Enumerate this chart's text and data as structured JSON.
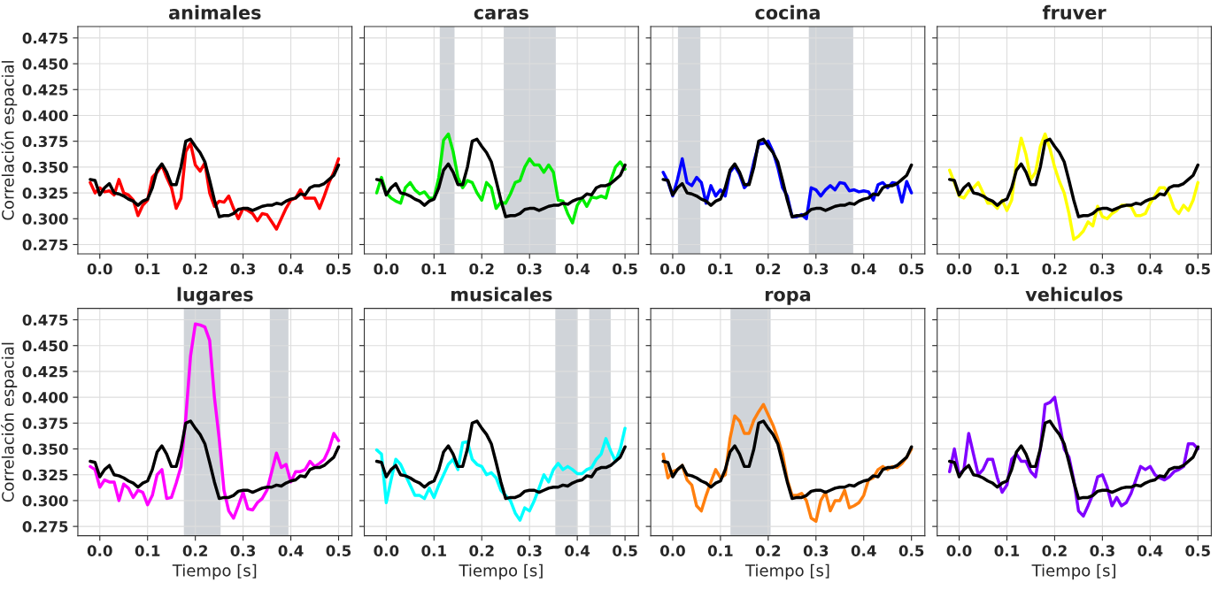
{
  "chart_data": [
    {
      "type": "line",
      "title": "animales",
      "ylabel": "Correlación espacial",
      "grid": true,
      "x": [
        -0.02,
        -0.01,
        0.0,
        0.01,
        0.02,
        0.03,
        0.04,
        0.05,
        0.06,
        0.07,
        0.08,
        0.09,
        0.1,
        0.11,
        0.12,
        0.13,
        0.14,
        0.15,
        0.16,
        0.17,
        0.18,
        0.19,
        0.2,
        0.21,
        0.22,
        0.23,
        0.24,
        0.25,
        0.26,
        0.27,
        0.28,
        0.29,
        0.3,
        0.31,
        0.32,
        0.33,
        0.34,
        0.35,
        0.36,
        0.37,
        0.38,
        0.39,
        0.4,
        0.41,
        0.42,
        0.43,
        0.44,
        0.45,
        0.46,
        0.47,
        0.48,
        0.49,
        0.5
      ],
      "xlim": [
        -0.046,
        0.528
      ],
      "ylim": [
        0.266,
        0.486
      ],
      "xticks": [
        {
          "value": 0.0,
          "label": "0.0"
        },
        {
          "value": 0.1,
          "label": "0.1"
        },
        {
          "value": 0.2,
          "label": "0.2"
        },
        {
          "value": 0.3,
          "label": "0.3"
        },
        {
          "value": 0.4,
          "label": "0.4"
        },
        {
          "value": 0.5,
          "label": "0.5"
        }
      ],
      "yticks": [
        {
          "value": 0.275,
          "label": "0.275"
        },
        {
          "value": 0.3,
          "label": "0.300"
        },
        {
          "value": 0.325,
          "label": "0.325"
        },
        {
          "value": 0.35,
          "label": "0.350"
        },
        {
          "value": 0.375,
          "label": "0.375"
        },
        {
          "value": 0.4,
          "label": "0.400"
        },
        {
          "value": 0.425,
          "label": "0.425"
        },
        {
          "value": 0.45,
          "label": "0.450"
        },
        {
          "value": 0.475,
          "label": "0.475"
        }
      ],
      "series": [
        {
          "color": "#ff0000",
          "values": [
            0.335,
            0.325,
            0.33,
            0.326,
            0.327,
            0.323,
            0.338,
            0.325,
            0.323,
            0.318,
            0.303,
            0.313,
            0.318,
            0.34,
            0.345,
            0.352,
            0.34,
            0.33,
            0.31,
            0.32,
            0.365,
            0.373,
            0.352,
            0.346,
            0.354,
            0.325,
            0.312,
            0.317,
            0.316,
            0.322,
            0.31,
            0.3,
            0.31,
            0.308,
            0.305,
            0.298,
            0.305,
            0.304,
            0.297,
            0.29,
            0.3,
            0.31,
            0.318,
            0.32,
            0.328,
            0.32,
            0.32,
            0.32,
            0.31,
            0.322,
            0.335,
            0.345,
            0.358
          ]
        },
        {
          "color": "#000000",
          "values": [
            0.338,
            0.337,
            0.323,
            0.33,
            0.334,
            0.325,
            0.324,
            0.322,
            0.319,
            0.317,
            0.313,
            0.317,
            0.319,
            0.33,
            0.347,
            0.353,
            0.345,
            0.333,
            0.333,
            0.35,
            0.375,
            0.377,
            0.37,
            0.364,
            0.355,
            0.337,
            0.318,
            0.302,
            0.303,
            0.303,
            0.305,
            0.309,
            0.31,
            0.31,
            0.308,
            0.31,
            0.312,
            0.313,
            0.313,
            0.315,
            0.314,
            0.317,
            0.319,
            0.32,
            0.324,
            0.323,
            0.33,
            0.332,
            0.332,
            0.334,
            0.338,
            0.342,
            0.352
          ]
        }
      ]
    },
    {
      "type": "line",
      "title": "caras",
      "grid": true,
      "tick_labels": "x",
      "x": [
        -0.02,
        -0.01,
        0.0,
        0.01,
        0.02,
        0.03,
        0.04,
        0.05,
        0.06,
        0.07,
        0.08,
        0.09,
        0.1,
        0.11,
        0.12,
        0.13,
        0.14,
        0.15,
        0.16,
        0.17,
        0.18,
        0.19,
        0.2,
        0.21,
        0.22,
        0.23,
        0.24,
        0.25,
        0.26,
        0.27,
        0.28,
        0.29,
        0.3,
        0.31,
        0.32,
        0.33,
        0.34,
        0.35,
        0.36,
        0.37,
        0.38,
        0.39,
        0.4,
        0.41,
        0.42,
        0.43,
        0.44,
        0.45,
        0.46,
        0.47,
        0.48,
        0.49,
        0.5
      ],
      "xlim": [
        -0.046,
        0.528
      ],
      "ylim": [
        0.266,
        0.486
      ],
      "xticks": [
        {
          "value": 0.0,
          "label": "0.0"
        },
        {
          "value": 0.1,
          "label": "0.1"
        },
        {
          "value": 0.2,
          "label": "0.2"
        },
        {
          "value": 0.3,
          "label": "0.3"
        },
        {
          "value": 0.4,
          "label": "0.4"
        },
        {
          "value": 0.5,
          "label": "0.5"
        }
      ],
      "yticks": [
        {
          "value": 0.275,
          "label": null
        },
        {
          "value": 0.3,
          "label": null
        },
        {
          "value": 0.325,
          "label": null
        },
        {
          "value": 0.35,
          "label": null
        },
        {
          "value": 0.375,
          "label": null
        },
        {
          "value": 0.4,
          "label": null
        },
        {
          "value": 0.425,
          "label": null
        },
        {
          "value": 0.45,
          "label": null
        },
        {
          "value": 0.475,
          "label": null
        }
      ],
      "bands": [
        {
          "axis": "x",
          "from": 0.112,
          "to": 0.143,
          "color": "#d0d4d9"
        },
        {
          "axis": "x",
          "from": 0.246,
          "to": 0.355,
          "color": "#d0d4d9"
        }
      ],
      "series": [
        {
          "color": "#00ee00",
          "values": [
            0.325,
            0.34,
            0.325,
            0.32,
            0.317,
            0.315,
            0.33,
            0.335,
            0.328,
            0.324,
            0.326,
            0.32,
            0.32,
            0.34,
            0.376,
            0.382,
            0.365,
            0.34,
            0.33,
            0.337,
            0.335,
            0.325,
            0.318,
            0.335,
            0.33,
            0.31,
            0.316,
            0.315,
            0.324,
            0.335,
            0.337,
            0.35,
            0.358,
            0.352,
            0.352,
            0.345,
            0.352,
            0.345,
            0.318,
            0.317,
            0.305,
            0.296,
            0.313,
            0.32,
            0.312,
            0.321,
            0.32,
            0.322,
            0.32,
            0.337,
            0.35,
            0.355,
            0.348
          ]
        },
        {
          "color": "#000000",
          "values": [
            0.338,
            0.337,
            0.323,
            0.33,
            0.334,
            0.325,
            0.324,
            0.322,
            0.319,
            0.317,
            0.313,
            0.317,
            0.319,
            0.33,
            0.347,
            0.353,
            0.345,
            0.333,
            0.333,
            0.35,
            0.375,
            0.377,
            0.37,
            0.364,
            0.355,
            0.337,
            0.318,
            0.302,
            0.303,
            0.303,
            0.305,
            0.309,
            0.31,
            0.31,
            0.308,
            0.31,
            0.312,
            0.313,
            0.313,
            0.315,
            0.314,
            0.317,
            0.319,
            0.32,
            0.324,
            0.323,
            0.33,
            0.332,
            0.332,
            0.334,
            0.338,
            0.342,
            0.352
          ]
        }
      ]
    },
    {
      "type": "line",
      "title": "cocina",
      "grid": true,
      "tick_labels": "x",
      "x": [
        -0.02,
        -0.01,
        0.0,
        0.01,
        0.02,
        0.03,
        0.04,
        0.05,
        0.06,
        0.07,
        0.08,
        0.09,
        0.1,
        0.11,
        0.12,
        0.13,
        0.14,
        0.15,
        0.16,
        0.17,
        0.18,
        0.19,
        0.2,
        0.21,
        0.22,
        0.23,
        0.24,
        0.25,
        0.26,
        0.27,
        0.28,
        0.29,
        0.3,
        0.31,
        0.32,
        0.33,
        0.34,
        0.35,
        0.36,
        0.37,
        0.38,
        0.39,
        0.4,
        0.41,
        0.42,
        0.43,
        0.44,
        0.45,
        0.46,
        0.47,
        0.48,
        0.49,
        0.5
      ],
      "xlim": [
        -0.046,
        0.528
      ],
      "ylim": [
        0.266,
        0.486
      ],
      "xticks": [
        {
          "value": 0.0,
          "label": "0.0"
        },
        {
          "value": 0.1,
          "label": "0.1"
        },
        {
          "value": 0.2,
          "label": "0.2"
        },
        {
          "value": 0.3,
          "label": "0.3"
        },
        {
          "value": 0.4,
          "label": "0.4"
        },
        {
          "value": 0.5,
          "label": "0.5"
        }
      ],
      "yticks": [
        {
          "value": 0.275,
          "label": null
        },
        {
          "value": 0.3,
          "label": null
        },
        {
          "value": 0.325,
          "label": null
        },
        {
          "value": 0.35,
          "label": null
        },
        {
          "value": 0.375,
          "label": null
        },
        {
          "value": 0.4,
          "label": null
        },
        {
          "value": 0.425,
          "label": null
        },
        {
          "value": 0.45,
          "label": null
        },
        {
          "value": 0.475,
          "label": null
        }
      ],
      "bands": [
        {
          "axis": "x",
          "from": 0.011,
          "to": 0.058,
          "color": "#d0d4d9"
        },
        {
          "axis": "x",
          "from": 0.285,
          "to": 0.378,
          "color": "#d0d4d9"
        }
      ],
      "series": [
        {
          "color": "#0000ff",
          "values": [
            0.345,
            0.336,
            0.322,
            0.338,
            0.358,
            0.335,
            0.332,
            0.34,
            0.335,
            0.315,
            0.332,
            0.322,
            0.328,
            0.322,
            0.345,
            0.351,
            0.343,
            0.33,
            0.335,
            0.355,
            0.372,
            0.373,
            0.375,
            0.365,
            0.35,
            0.33,
            0.322,
            0.302,
            0.302,
            0.304,
            0.3,
            0.33,
            0.328,
            0.322,
            0.328,
            0.332,
            0.328,
            0.335,
            0.334,
            0.327,
            0.328,
            0.326,
            0.327,
            0.326,
            0.318,
            0.333,
            0.335,
            0.33,
            0.335,
            0.334,
            0.316,
            0.336,
            0.325
          ]
        },
        {
          "color": "#000000",
          "values": [
            0.338,
            0.337,
            0.323,
            0.33,
            0.334,
            0.325,
            0.324,
            0.322,
            0.319,
            0.317,
            0.313,
            0.317,
            0.319,
            0.33,
            0.347,
            0.353,
            0.345,
            0.333,
            0.333,
            0.35,
            0.375,
            0.377,
            0.37,
            0.364,
            0.355,
            0.337,
            0.318,
            0.302,
            0.303,
            0.303,
            0.305,
            0.309,
            0.31,
            0.31,
            0.308,
            0.31,
            0.312,
            0.313,
            0.313,
            0.315,
            0.314,
            0.317,
            0.319,
            0.32,
            0.324,
            0.323,
            0.33,
            0.332,
            0.332,
            0.334,
            0.338,
            0.342,
            0.352
          ]
        }
      ]
    },
    {
      "type": "line",
      "title": "fruver",
      "grid": true,
      "tick_labels": "x",
      "x": [
        -0.02,
        -0.01,
        0.0,
        0.01,
        0.02,
        0.03,
        0.04,
        0.05,
        0.06,
        0.07,
        0.08,
        0.09,
        0.1,
        0.11,
        0.12,
        0.13,
        0.14,
        0.15,
        0.16,
        0.17,
        0.18,
        0.19,
        0.2,
        0.21,
        0.22,
        0.23,
        0.24,
        0.25,
        0.26,
        0.27,
        0.28,
        0.29,
        0.3,
        0.31,
        0.32,
        0.33,
        0.34,
        0.35,
        0.36,
        0.37,
        0.38,
        0.39,
        0.4,
        0.41,
        0.42,
        0.43,
        0.44,
        0.45,
        0.46,
        0.47,
        0.48,
        0.49,
        0.5
      ],
      "xlim": [
        -0.046,
        0.528
      ],
      "ylim": [
        0.266,
        0.486
      ],
      "xticks": [
        {
          "value": 0.0,
          "label": "0.0"
        },
        {
          "value": 0.1,
          "label": "0.1"
        },
        {
          "value": 0.2,
          "label": "0.2"
        },
        {
          "value": 0.3,
          "label": "0.3"
        },
        {
          "value": 0.4,
          "label": "0.4"
        },
        {
          "value": 0.5,
          "label": "0.5"
        }
      ],
      "yticks": [
        {
          "value": 0.275,
          "label": null
        },
        {
          "value": 0.3,
          "label": null
        },
        {
          "value": 0.325,
          "label": null
        },
        {
          "value": 0.35,
          "label": null
        },
        {
          "value": 0.375,
          "label": null
        },
        {
          "value": 0.4,
          "label": null
        },
        {
          "value": 0.425,
          "label": null
        },
        {
          "value": 0.45,
          "label": null
        },
        {
          "value": 0.475,
          "label": null
        }
      ],
      "series": [
        {
          "color": "#ffff00",
          "values": [
            0.347,
            0.335,
            0.322,
            0.32,
            0.327,
            0.33,
            0.335,
            0.325,
            0.315,
            0.315,
            0.31,
            0.318,
            0.308,
            0.318,
            0.355,
            0.378,
            0.362,
            0.338,
            0.345,
            0.37,
            0.382,
            0.368,
            0.35,
            0.336,
            0.325,
            0.305,
            0.28,
            0.283,
            0.288,
            0.297,
            0.293,
            0.312,
            0.302,
            0.3,
            0.305,
            0.308,
            0.313,
            0.313,
            0.312,
            0.303,
            0.303,
            0.305,
            0.315,
            0.322,
            0.33,
            0.33,
            0.323,
            0.31,
            0.305,
            0.313,
            0.308,
            0.318,
            0.335
          ]
        },
        {
          "color": "#000000",
          "values": [
            0.338,
            0.337,
            0.323,
            0.33,
            0.334,
            0.325,
            0.324,
            0.322,
            0.319,
            0.317,
            0.313,
            0.317,
            0.319,
            0.33,
            0.347,
            0.353,
            0.345,
            0.333,
            0.333,
            0.35,
            0.375,
            0.377,
            0.37,
            0.364,
            0.355,
            0.337,
            0.318,
            0.302,
            0.303,
            0.303,
            0.305,
            0.309,
            0.31,
            0.31,
            0.308,
            0.31,
            0.312,
            0.313,
            0.313,
            0.315,
            0.314,
            0.317,
            0.319,
            0.32,
            0.324,
            0.323,
            0.33,
            0.332,
            0.332,
            0.334,
            0.338,
            0.342,
            0.352
          ]
        }
      ]
    },
    {
      "type": "line",
      "title": "lugares",
      "xlabel": "Tiempo [s]",
      "ylabel": "Correlación espacial",
      "grid": true,
      "x": [
        -0.02,
        -0.01,
        0.0,
        0.01,
        0.02,
        0.03,
        0.04,
        0.05,
        0.06,
        0.07,
        0.08,
        0.09,
        0.1,
        0.11,
        0.12,
        0.13,
        0.14,
        0.15,
        0.16,
        0.17,
        0.18,
        0.19,
        0.2,
        0.21,
        0.22,
        0.23,
        0.24,
        0.25,
        0.26,
        0.27,
        0.28,
        0.29,
        0.3,
        0.31,
        0.32,
        0.33,
        0.34,
        0.35,
        0.36,
        0.37,
        0.38,
        0.39,
        0.4,
        0.41,
        0.42,
        0.43,
        0.44,
        0.45,
        0.46,
        0.47,
        0.48,
        0.49,
        0.5
      ],
      "xlim": [
        -0.046,
        0.528
      ],
      "ylim": [
        0.266,
        0.486
      ],
      "xticks": [
        {
          "value": 0.0,
          "label": "0.0"
        },
        {
          "value": 0.1,
          "label": "0.1"
        },
        {
          "value": 0.2,
          "label": "0.2"
        },
        {
          "value": 0.3,
          "label": "0.3"
        },
        {
          "value": 0.4,
          "label": "0.4"
        },
        {
          "value": 0.5,
          "label": "0.5"
        }
      ],
      "yticks": [
        {
          "value": 0.275,
          "label": "0.275"
        },
        {
          "value": 0.3,
          "label": "0.300"
        },
        {
          "value": 0.325,
          "label": "0.325"
        },
        {
          "value": 0.35,
          "label": "0.350"
        },
        {
          "value": 0.375,
          "label": "0.375"
        },
        {
          "value": 0.4,
          "label": "0.400"
        },
        {
          "value": 0.425,
          "label": "0.425"
        },
        {
          "value": 0.45,
          "label": "0.450"
        },
        {
          "value": 0.475,
          "label": "0.475"
        }
      ],
      "bands": [
        {
          "axis": "x",
          "from": 0.176,
          "to": 0.253,
          "color": "#d0d4d9"
        },
        {
          "axis": "x",
          "from": 0.356,
          "to": 0.395,
          "color": "#d0d4d9"
        }
      ],
      "series": [
        {
          "color": "#ff00ff",
          "values": [
            0.333,
            0.33,
            0.313,
            0.32,
            0.318,
            0.318,
            0.3,
            0.316,
            0.312,
            0.303,
            0.31,
            0.308,
            0.296,
            0.305,
            0.325,
            0.33,
            0.302,
            0.303,
            0.317,
            0.333,
            0.38,
            0.44,
            0.471,
            0.47,
            0.468,
            0.455,
            0.4,
            0.36,
            0.31,
            0.29,
            0.283,
            0.295,
            0.308,
            0.292,
            0.291,
            0.298,
            0.302,
            0.31,
            0.328,
            0.346,
            0.332,
            0.335,
            0.318,
            0.328,
            0.328,
            0.33,
            0.338,
            0.333,
            0.336,
            0.34,
            0.35,
            0.365,
            0.358
          ]
        },
        {
          "color": "#000000",
          "values": [
            0.338,
            0.337,
            0.323,
            0.33,
            0.334,
            0.325,
            0.324,
            0.322,
            0.319,
            0.317,
            0.313,
            0.317,
            0.319,
            0.33,
            0.347,
            0.353,
            0.345,
            0.333,
            0.333,
            0.35,
            0.375,
            0.377,
            0.37,
            0.364,
            0.355,
            0.337,
            0.318,
            0.302,
            0.303,
            0.303,
            0.305,
            0.309,
            0.31,
            0.31,
            0.308,
            0.31,
            0.312,
            0.313,
            0.313,
            0.315,
            0.314,
            0.317,
            0.319,
            0.32,
            0.324,
            0.323,
            0.33,
            0.332,
            0.332,
            0.334,
            0.338,
            0.342,
            0.352
          ]
        }
      ]
    },
    {
      "type": "line",
      "title": "musicales",
      "xlabel": "Tiempo [s]",
      "grid": true,
      "tick_labels": "x",
      "x": [
        -0.02,
        -0.01,
        0.0,
        0.01,
        0.02,
        0.03,
        0.04,
        0.05,
        0.06,
        0.07,
        0.08,
        0.09,
        0.1,
        0.11,
        0.12,
        0.13,
        0.14,
        0.15,
        0.16,
        0.17,
        0.18,
        0.19,
        0.2,
        0.21,
        0.22,
        0.23,
        0.24,
        0.25,
        0.26,
        0.27,
        0.28,
        0.29,
        0.3,
        0.31,
        0.32,
        0.33,
        0.34,
        0.35,
        0.36,
        0.37,
        0.38,
        0.39,
        0.4,
        0.41,
        0.42,
        0.43,
        0.44,
        0.45,
        0.46,
        0.47,
        0.48,
        0.49,
        0.5
      ],
      "xlim": [
        -0.046,
        0.528
      ],
      "ylim": [
        0.266,
        0.486
      ],
      "xticks": [
        {
          "value": 0.0,
          "label": "0.0"
        },
        {
          "value": 0.1,
          "label": "0.1"
        },
        {
          "value": 0.2,
          "label": "0.2"
        },
        {
          "value": 0.3,
          "label": "0.3"
        },
        {
          "value": 0.4,
          "label": "0.4"
        },
        {
          "value": 0.5,
          "label": "0.5"
        }
      ],
      "yticks": [
        {
          "value": 0.275,
          "label": null
        },
        {
          "value": 0.3,
          "label": null
        },
        {
          "value": 0.325,
          "label": null
        },
        {
          "value": 0.35,
          "label": null
        },
        {
          "value": 0.375,
          "label": null
        },
        {
          "value": 0.4,
          "label": null
        },
        {
          "value": 0.425,
          "label": null
        },
        {
          "value": 0.45,
          "label": null
        },
        {
          "value": 0.475,
          "label": null
        }
      ],
      "bands": [
        {
          "axis": "x",
          "from": 0.354,
          "to": 0.4,
          "color": "#d0d4d9"
        },
        {
          "axis": "x",
          "from": 0.425,
          "to": 0.47,
          "color": "#d0d4d9"
        }
      ],
      "series": [
        {
          "color": "#00ffff",
          "values": [
            0.349,
            0.345,
            0.298,
            0.32,
            0.34,
            0.335,
            0.325,
            0.315,
            0.305,
            0.305,
            0.302,
            0.312,
            0.303,
            0.315,
            0.325,
            0.335,
            0.34,
            0.33,
            0.356,
            0.357,
            0.34,
            0.335,
            0.333,
            0.325,
            0.327,
            0.322,
            0.31,
            0.305,
            0.3,
            0.288,
            0.281,
            0.293,
            0.29,
            0.3,
            0.312,
            0.325,
            0.318,
            0.33,
            0.336,
            0.33,
            0.333,
            0.33,
            0.326,
            0.326,
            0.33,
            0.332,
            0.34,
            0.345,
            0.36,
            0.348,
            0.338,
            0.35,
            0.37
          ]
        },
        {
          "color": "#000000",
          "values": [
            0.338,
            0.337,
            0.323,
            0.33,
            0.334,
            0.325,
            0.324,
            0.322,
            0.319,
            0.317,
            0.313,
            0.317,
            0.319,
            0.33,
            0.347,
            0.353,
            0.345,
            0.333,
            0.333,
            0.35,
            0.375,
            0.377,
            0.37,
            0.364,
            0.355,
            0.337,
            0.318,
            0.302,
            0.303,
            0.303,
            0.305,
            0.309,
            0.31,
            0.31,
            0.308,
            0.31,
            0.312,
            0.313,
            0.313,
            0.315,
            0.314,
            0.317,
            0.319,
            0.32,
            0.324,
            0.323,
            0.33,
            0.332,
            0.332,
            0.334,
            0.338,
            0.342,
            0.352
          ]
        }
      ]
    },
    {
      "type": "line",
      "title": "ropa",
      "xlabel": "Tiempo [s]",
      "grid": true,
      "tick_labels": "x",
      "x": [
        -0.02,
        -0.01,
        0.0,
        0.01,
        0.02,
        0.03,
        0.04,
        0.05,
        0.06,
        0.07,
        0.08,
        0.09,
        0.1,
        0.11,
        0.12,
        0.13,
        0.14,
        0.15,
        0.16,
        0.17,
        0.18,
        0.19,
        0.2,
        0.21,
        0.22,
        0.23,
        0.24,
        0.25,
        0.26,
        0.27,
        0.28,
        0.29,
        0.3,
        0.31,
        0.32,
        0.33,
        0.34,
        0.35,
        0.36,
        0.37,
        0.38,
        0.39,
        0.4,
        0.41,
        0.42,
        0.43,
        0.44,
        0.45,
        0.46,
        0.47,
        0.48,
        0.49,
        0.5
      ],
      "xlim": [
        -0.046,
        0.528
      ],
      "ylim": [
        0.266,
        0.486
      ],
      "xticks": [
        {
          "value": 0.0,
          "label": "0.0"
        },
        {
          "value": 0.1,
          "label": "0.1"
        },
        {
          "value": 0.2,
          "label": "0.2"
        },
        {
          "value": 0.3,
          "label": "0.3"
        },
        {
          "value": 0.4,
          "label": "0.4"
        },
        {
          "value": 0.5,
          "label": "0.5"
        }
      ],
      "yticks": [
        {
          "value": 0.275,
          "label": null
        },
        {
          "value": 0.3,
          "label": null
        },
        {
          "value": 0.325,
          "label": null
        },
        {
          "value": 0.35,
          "label": null
        },
        {
          "value": 0.375,
          "label": null
        },
        {
          "value": 0.4,
          "label": null
        },
        {
          "value": 0.425,
          "label": null
        },
        {
          "value": 0.45,
          "label": null
        },
        {
          "value": 0.475,
          "label": null
        }
      ],
      "bands": [
        {
          "axis": "x",
          "from": 0.121,
          "to": 0.205,
          "color": "#d0d4d9"
        }
      ],
      "series": [
        {
          "color": "#ff7f0e",
          "values": [
            0.345,
            0.322,
            0.328,
            0.33,
            0.334,
            0.32,
            0.315,
            0.295,
            0.29,
            0.305,
            0.318,
            0.33,
            0.322,
            0.325,
            0.36,
            0.382,
            0.377,
            0.365,
            0.365,
            0.378,
            0.386,
            0.393,
            0.383,
            0.373,
            0.36,
            0.345,
            0.32,
            0.305,
            0.305,
            0.307,
            0.3,
            0.283,
            0.28,
            0.3,
            0.308,
            0.29,
            0.3,
            0.3,
            0.31,
            0.293,
            0.295,
            0.298,
            0.305,
            0.32,
            0.322,
            0.33,
            0.333,
            0.33,
            0.333,
            0.332,
            0.336,
            0.342,
            0.35
          ]
        },
        {
          "color": "#000000",
          "values": [
            0.338,
            0.337,
            0.323,
            0.33,
            0.334,
            0.325,
            0.324,
            0.322,
            0.319,
            0.317,
            0.313,
            0.317,
            0.319,
            0.33,
            0.347,
            0.353,
            0.345,
            0.333,
            0.333,
            0.35,
            0.375,
            0.377,
            0.37,
            0.364,
            0.355,
            0.337,
            0.318,
            0.302,
            0.303,
            0.303,
            0.305,
            0.309,
            0.31,
            0.31,
            0.308,
            0.31,
            0.312,
            0.313,
            0.313,
            0.315,
            0.314,
            0.317,
            0.319,
            0.32,
            0.324,
            0.323,
            0.33,
            0.332,
            0.332,
            0.334,
            0.338,
            0.342,
            0.352
          ]
        }
      ]
    },
    {
      "type": "line",
      "title": "vehiculos",
      "xlabel": "Tiempo [s]",
      "grid": true,
      "tick_labels": "x",
      "x": [
        -0.02,
        -0.01,
        0.0,
        0.01,
        0.02,
        0.03,
        0.04,
        0.05,
        0.06,
        0.07,
        0.08,
        0.09,
        0.1,
        0.11,
        0.12,
        0.13,
        0.14,
        0.15,
        0.16,
        0.17,
        0.18,
        0.19,
        0.2,
        0.21,
        0.22,
        0.23,
        0.24,
        0.25,
        0.26,
        0.27,
        0.28,
        0.29,
        0.3,
        0.31,
        0.32,
        0.33,
        0.34,
        0.35,
        0.36,
        0.37,
        0.38,
        0.39,
        0.4,
        0.41,
        0.42,
        0.43,
        0.44,
        0.45,
        0.46,
        0.47,
        0.48,
        0.49,
        0.5
      ],
      "xlim": [
        -0.046,
        0.528
      ],
      "ylim": [
        0.266,
        0.486
      ],
      "xticks": [
        {
          "value": 0.0,
          "label": "0.0"
        },
        {
          "value": 0.1,
          "label": "0.1"
        },
        {
          "value": 0.2,
          "label": "0.2"
        },
        {
          "value": 0.3,
          "label": "0.3"
        },
        {
          "value": 0.4,
          "label": "0.4"
        },
        {
          "value": 0.5,
          "label": "0.5"
        }
      ],
      "yticks": [
        {
          "value": 0.275,
          "label": null
        },
        {
          "value": 0.3,
          "label": null
        },
        {
          "value": 0.325,
          "label": null
        },
        {
          "value": 0.35,
          "label": null
        },
        {
          "value": 0.375,
          "label": null
        },
        {
          "value": 0.4,
          "label": null
        },
        {
          "value": 0.425,
          "label": null
        },
        {
          "value": 0.45,
          "label": null
        },
        {
          "value": 0.475,
          "label": null
        }
      ],
      "series": [
        {
          "color": "#8000ff",
          "values": [
            0.328,
            0.35,
            0.325,
            0.33,
            0.365,
            0.345,
            0.325,
            0.33,
            0.34,
            0.34,
            0.322,
            0.308,
            0.315,
            0.34,
            0.345,
            0.338,
            0.338,
            0.328,
            0.323,
            0.35,
            0.393,
            0.395,
            0.4,
            0.375,
            0.35,
            0.342,
            0.32,
            0.29,
            0.285,
            0.295,
            0.306,
            0.323,
            0.325,
            0.313,
            0.295,
            0.303,
            0.295,
            0.298,
            0.307,
            0.32,
            0.333,
            0.33,
            0.333,
            0.325,
            0.322,
            0.32,
            0.323,
            0.328,
            0.33,
            0.333,
            0.355,
            0.355,
            0.35
          ]
        },
        {
          "color": "#000000",
          "values": [
            0.338,
            0.337,
            0.323,
            0.33,
            0.334,
            0.325,
            0.324,
            0.322,
            0.319,
            0.317,
            0.313,
            0.317,
            0.319,
            0.33,
            0.347,
            0.353,
            0.345,
            0.333,
            0.333,
            0.35,
            0.375,
            0.377,
            0.37,
            0.364,
            0.355,
            0.337,
            0.318,
            0.302,
            0.303,
            0.303,
            0.305,
            0.309,
            0.31,
            0.31,
            0.308,
            0.31,
            0.312,
            0.313,
            0.313,
            0.315,
            0.314,
            0.317,
            0.319,
            0.32,
            0.324,
            0.323,
            0.33,
            0.332,
            0.332,
            0.334,
            0.338,
            0.342,
            0.352
          ]
        }
      ]
    }
  ]
}
